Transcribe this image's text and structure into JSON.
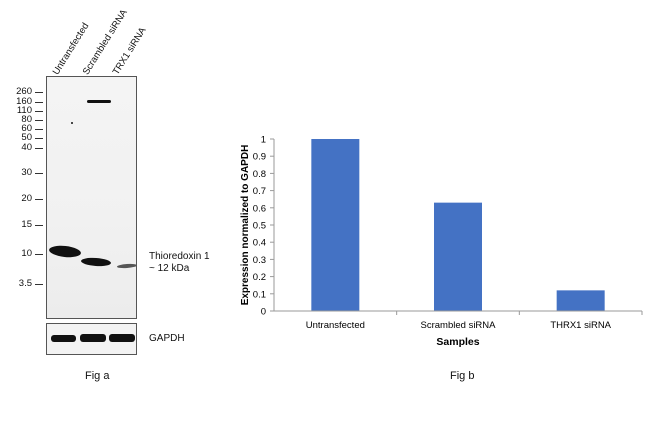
{
  "fig_a": {
    "lanes": [
      "Untransfected",
      "Scrambled siRNA",
      "TRX1 siRNA"
    ],
    "markers": [
      "260",
      "160",
      "110",
      "80",
      "60",
      "50",
      "40",
      "30",
      "20",
      "15",
      "10",
      "3.5"
    ],
    "band_label_line1": "Thioredoxin 1",
    "band_label_line2": "~ 12 kDa",
    "loading_control": "GAPDH",
    "caption": "Fig a"
  },
  "chart_data": {
    "type": "bar",
    "title": "",
    "categories": [
      "Untransfected",
      "Scrambled siRNA",
      "THRX1 siRNA"
    ],
    "values": [
      1.0,
      0.63,
      0.12
    ],
    "xlabel": "Samples",
    "ylabel": "Expression  normalized to GAPDH",
    "ylim": [
      0,
      1
    ],
    "yticks": [
      "0",
      "0.1",
      "0.2",
      "0.3",
      "0.4",
      "0.5",
      "0.6",
      "0.7",
      "0.8",
      "0.9",
      "1"
    ],
    "grid": false,
    "color": "#4472c4"
  },
  "fig_b": {
    "caption": "Fig b"
  }
}
